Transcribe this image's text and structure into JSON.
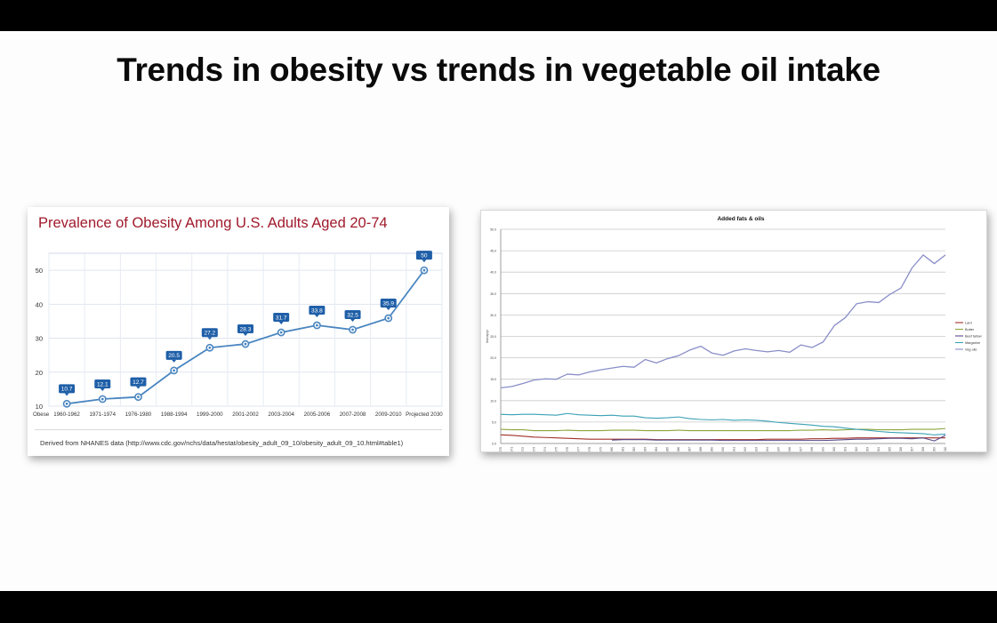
{
  "slide": {
    "title": "Trends in obesity vs trends in vegetable oil intake"
  },
  "chart_data": [
    {
      "type": "line",
      "title": "Prevalence of Obesity Among U.S. Adults Aged 20-74",
      "footnote": "Derived from NHANES data (http://www.cdc.gov/nchs/data/hestat/obesity_adult_09_10/obesity_adult_09_10.html#table1)",
      "row_label": "Obese",
      "categories": [
        "1960-1962",
        "1971-1974",
        "1976-1980",
        "1988-1994",
        "1999-2000",
        "2001-2002",
        "2003-2004",
        "2005-2006",
        "2007-2008",
        "2009-2010",
        "Projected 2030"
      ],
      "values": [
        10.7,
        12.1,
        12.7,
        20.5,
        27.2,
        28.3,
        31.7,
        33.8,
        32.5,
        35.9,
        50
      ],
      "data_labels": [
        "10.7",
        "12.1",
        "12.7",
        "20.5",
        "27.2",
        "28.3",
        "31.7",
        "33.8",
        "32.5",
        "35.9",
        "50"
      ],
      "yticks": [
        "10",
        "20",
        "30",
        "40",
        "50"
      ],
      "ylim": [
        10,
        55
      ],
      "grid": true,
      "colors": {
        "line": "#4a86c0",
        "label_bg": "#1f5fa8",
        "title": "#a01a2c"
      }
    },
    {
      "type": "line",
      "title": "Added fats & oils",
      "ylabel": "lbs/cap/yr",
      "x": [
        1970,
        1971,
        1972,
        1973,
        1974,
        1975,
        1976,
        1977,
        1978,
        1979,
        1980,
        1981,
        1982,
        1983,
        1984,
        1985,
        1986,
        1987,
        1988,
        1989,
        1990,
        1991,
        1992,
        1993,
        1994,
        1995,
        1996,
        1997,
        1998,
        1999,
        2000,
        2001,
        2002,
        2003,
        2004,
        2005,
        2006,
        2007,
        2008,
        2009,
        2010
      ],
      "yticks": [
        "0.0",
        "5.0",
        "10.0",
        "15.0",
        "20.0",
        "25.0",
        "30.0",
        "35.0",
        "40.0",
        "45.0",
        "50.0"
      ],
      "ylim": [
        0,
        50
      ],
      "grid": true,
      "legend_position": "right",
      "series": [
        {
          "name": "Lard",
          "color": "#a0302a",
          "values": [
            2.0,
            1.9,
            1.7,
            1.5,
            1.4,
            1.3,
            1.2,
            1.1,
            1.0,
            1.0,
            1.0,
            1.0,
            1.0,
            1.0,
            0.9,
            0.9,
            0.9,
            0.9,
            0.9,
            0.9,
            0.9,
            0.9,
            0.9,
            0.9,
            1.0,
            1.0,
            1.0,
            1.0,
            1.1,
            1.1,
            1.2,
            1.2,
            1.3,
            1.3,
            1.3,
            1.3,
            1.3,
            1.3,
            1.3,
            1.3,
            1.3
          ]
        },
        {
          "name": "Butter",
          "color": "#8aa63a",
          "values": [
            3.3,
            3.2,
            3.2,
            3.0,
            3.0,
            3.0,
            3.1,
            3.0,
            3.0,
            3.0,
            3.1,
            3.1,
            3.1,
            3.0,
            3.0,
            3.0,
            3.1,
            3.0,
            3.0,
            3.0,
            3.0,
            3.0,
            3.0,
            3.0,
            3.0,
            3.0,
            3.0,
            3.1,
            3.1,
            3.2,
            3.1,
            3.2,
            3.3,
            3.3,
            3.2,
            3.2,
            3.2,
            3.3,
            3.3,
            3.3,
            3.5
          ]
        },
        {
          "name": "Beef tallow",
          "color": "#5a4a8a",
          "values": [
            null,
            null,
            null,
            null,
            null,
            null,
            null,
            null,
            null,
            null,
            0.8,
            0.9,
            0.9,
            0.9,
            0.8,
            0.8,
            0.8,
            0.8,
            0.8,
            0.8,
            0.7,
            0.7,
            0.7,
            0.7,
            0.7,
            0.7,
            0.7,
            0.7,
            0.7,
            0.7,
            0.8,
            0.9,
            1.0,
            1.0,
            1.1,
            1.2,
            1.2,
            1.1,
            1.3,
            0.6,
            1.9
          ]
        },
        {
          "name": "Margarine",
          "color": "#3aa0b4",
          "values": [
            6.8,
            6.7,
            6.8,
            6.8,
            6.7,
            6.6,
            7.0,
            6.7,
            6.6,
            6.5,
            6.6,
            6.4,
            6.4,
            6.0,
            5.9,
            6.0,
            6.2,
            5.8,
            5.6,
            5.5,
            5.6,
            5.4,
            5.5,
            5.4,
            5.2,
            4.9,
            4.7,
            4.5,
            4.3,
            4.0,
            3.9,
            3.6,
            3.3,
            3.1,
            2.8,
            2.6,
            2.5,
            2.4,
            2.3,
            2.0,
            2.2
          ]
        },
        {
          "name": "Veg oils",
          "color": "#8a8ec8",
          "values": [
            13.0,
            13.3,
            14.0,
            14.8,
            15.1,
            15.0,
            16.2,
            16.0,
            16.7,
            17.2,
            17.6,
            18.0,
            17.8,
            19.6,
            18.8,
            19.8,
            20.5,
            21.8,
            22.7,
            21.1,
            20.6,
            21.6,
            22.1,
            21.7,
            21.4,
            21.7,
            21.3,
            23.0,
            22.4,
            23.7,
            27.5,
            29.4,
            32.6,
            33.1,
            32.9,
            34.8,
            36.3,
            41.0,
            44.0,
            42.0,
            44.0
          ]
        }
      ]
    }
  ]
}
